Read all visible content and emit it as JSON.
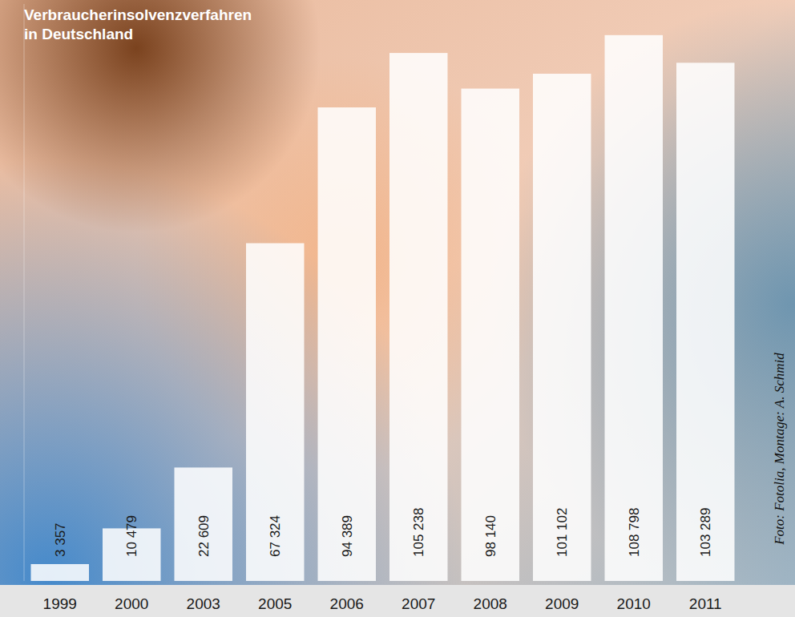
{
  "chart_data": {
    "type": "bar",
    "title": "Verbraucherinsolvenzverfahren in Deutschland",
    "annotations": [
      "Foto: Fotolia, Montage: A. Schmid"
    ],
    "categories": [
      "1999",
      "2000",
      "2003",
      "2005",
      "2006",
      "2007",
      "2008",
      "2009",
      "2010",
      "2011"
    ],
    "values": [
      3357,
      10479,
      22609,
      67324,
      94389,
      105238,
      98140,
      101102,
      108798,
      103289
    ],
    "value_labels": [
      "3 357",
      "10 479",
      "22 609",
      "67 324",
      "94 389",
      "105 238",
      "98 140",
      "101 102",
      "108 798",
      "103 289"
    ],
    "color": "#ffffff",
    "ylim": [
      0,
      115000
    ],
    "grid": false,
    "data_labels": true,
    "tick_labels": "x"
  }
}
